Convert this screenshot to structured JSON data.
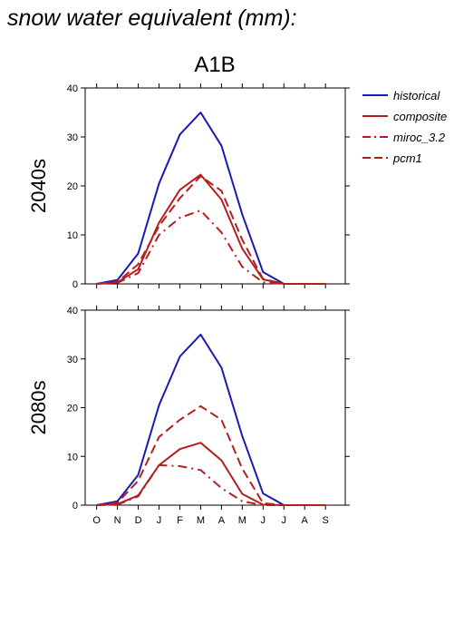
{
  "page": {
    "title": "snow water equivalent (mm):",
    "scenario": "A1B"
  },
  "colors": {
    "historical": "#1a1ab4",
    "projection": "#b41e1e"
  },
  "chart_data": [
    {
      "type": "line",
      "panel_label": "2040s",
      "categories": [
        "O",
        "N",
        "D",
        "J",
        "F",
        "M",
        "A",
        "M",
        "J",
        "J",
        "A",
        "S"
      ],
      "ylim": [
        0,
        40
      ],
      "yticks": [
        0,
        10,
        20,
        30,
        40
      ],
      "series": [
        {
          "name": "historical",
          "style": "solid",
          "color": "#1a1ab4",
          "values": [
            0,
            0.8,
            6.2,
            20.5,
            30.5,
            35.0,
            28.2,
            14.2,
            2.4,
            0,
            0,
            0
          ]
        },
        {
          "name": "composite",
          "style": "solid",
          "color": "#b41e1e",
          "values": [
            0,
            0.3,
            3.0,
            12.5,
            19.2,
            22.3,
            17.2,
            7.2,
            0.9,
            0,
            0,
            0
          ]
        },
        {
          "name": "miroc_3.2",
          "style": "dashdot",
          "color": "#b41e1e",
          "values": [
            0,
            0.2,
            2.2,
            10.0,
            13.5,
            15.0,
            10.5,
            3.5,
            0.3,
            0,
            0,
            0
          ]
        },
        {
          "name": "pcm1",
          "style": "dashed",
          "color": "#b41e1e",
          "values": [
            0,
            0.4,
            4.0,
            11.8,
            17.5,
            22.0,
            19.0,
            9.0,
            1.0,
            0,
            0,
            0
          ]
        }
      ]
    },
    {
      "type": "line",
      "panel_label": "2080s",
      "categories": [
        "O",
        "N",
        "D",
        "J",
        "F",
        "M",
        "A",
        "M",
        "J",
        "J",
        "A",
        "S"
      ],
      "ylim": [
        0,
        40
      ],
      "yticks": [
        0,
        10,
        20,
        30,
        40
      ],
      "series": [
        {
          "name": "historical",
          "style": "solid",
          "color": "#1a1ab4",
          "values": [
            0,
            0.8,
            6.2,
            20.5,
            30.5,
            35.0,
            28.2,
            14.2,
            2.4,
            0,
            0,
            0
          ]
        },
        {
          "name": "composite",
          "style": "solid",
          "color": "#b41e1e",
          "values": [
            0,
            0.2,
            2.0,
            8.2,
            11.5,
            12.8,
            9.2,
            2.3,
            0.1,
            0,
            0,
            0
          ]
        },
        {
          "name": "miroc_3.2",
          "style": "dashdot",
          "color": "#b41e1e",
          "values": [
            0,
            0.1,
            1.8,
            8.2,
            8.0,
            7.2,
            3.5,
            0.8,
            0,
            0,
            0,
            0
          ]
        },
        {
          "name": "pcm1",
          "style": "dashed",
          "color": "#b41e1e",
          "values": [
            0,
            0.5,
            5.0,
            14.0,
            17.5,
            20.3,
            17.5,
            7.5,
            0.4,
            0,
            0,
            0
          ]
        }
      ]
    }
  ],
  "legend": {
    "placement": "right",
    "items": [
      {
        "label": "historical",
        "style": "solid",
        "color": "#1a1ab4"
      },
      {
        "label": "composite",
        "style": "solid",
        "color": "#b41e1e"
      },
      {
        "label": "miroc_3.2",
        "style": "dashdot",
        "color": "#b41e1e"
      },
      {
        "label": "pcm1",
        "style": "dashed",
        "color": "#b41e1e"
      }
    ]
  }
}
